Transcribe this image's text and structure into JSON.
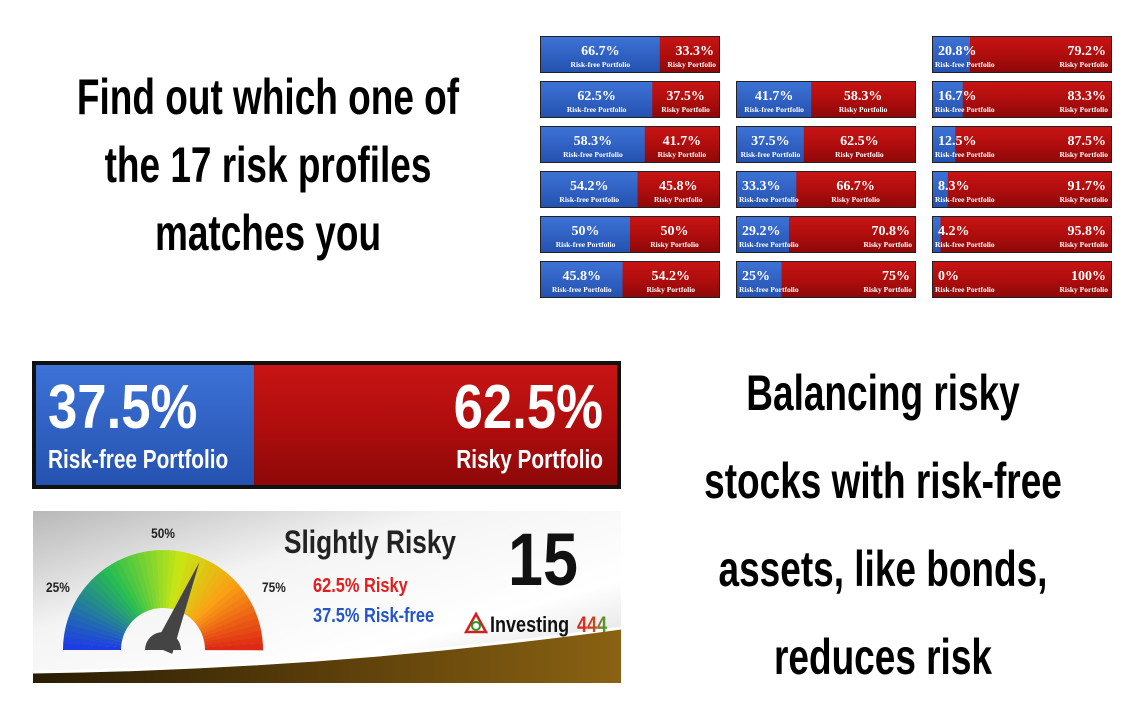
{
  "headline": [
    "Find out which one of",
    "the 17 risk profiles",
    "matches you"
  ],
  "profiles": [
    {
      "risk_free": "66.7%",
      "risky": "33.3%",
      "risk_free_label": "Risk-free Portfolio",
      "risky_label": "Risky Portfolio"
    },
    {
      "risk_free": "62.5%",
      "risky": "37.5%",
      "risk_free_label": "Risk-free Portfolio",
      "risky_label": "Risky Portfolio"
    },
    {
      "risk_free": "58.3%",
      "risky": "41.7%",
      "risk_free_label": "Risk-free Portfolio",
      "risky_label": "Risky Portfolio"
    },
    {
      "risk_free": "54.2%",
      "risky": "45.8%",
      "risk_free_label": "Risk-free Portfolio",
      "risky_label": "Risky Portfolio"
    },
    {
      "risk_free": "50%",
      "risky": "50%",
      "risk_free_label": "Risk-free Portfolio",
      "risky_label": "Risky Portfolio"
    },
    {
      "risk_free": "45.8%",
      "risky": "54.2%",
      "risk_free_label": "Risk-free Portfolio",
      "risky_label": "Risky Portfolio"
    },
    {
      "risk_free": "41.7%",
      "risky": "58.3%",
      "risk_free_label": "Risk-free Portfolio",
      "risky_label": "Risky Portfolio"
    },
    {
      "risk_free": "37.5%",
      "risky": "62.5%",
      "risk_free_label": "Risk-free Portfolio",
      "risky_label": "Risky Portfolio"
    },
    {
      "risk_free": "33.3%",
      "risky": "66.7%",
      "risk_free_label": "Risk-free Portfolio",
      "risky_label": "Risky Portfolio"
    },
    {
      "risk_free": "29.2%",
      "risky": "70.8%",
      "risk_free_label": "Risk-free Portfolio",
      "risky_label": "Risky Portfolio"
    },
    {
      "risk_free": "25%",
      "risky": "75%",
      "risk_free_label": "Risk-free Portfolio",
      "risky_label": "Risky Portfolio"
    },
    {
      "risk_free": "20.8%",
      "risky": "79.2%",
      "risk_free_label": "Risk-free Portfolio",
      "risky_label": "Risky Portfolio"
    },
    {
      "risk_free": "16.7%",
      "risky": "83.3%",
      "risk_free_label": "Risk-free Portfolio",
      "risky_label": "Risky Portfolio"
    },
    {
      "risk_free": "12.5%",
      "risky": "87.5%",
      "risk_free_label": "Risk-free Portfolio",
      "risky_label": "Risky Portfolio"
    },
    {
      "risk_free": "8.3%",
      "risky": "91.7%",
      "risk_free_label": "Risk-free Portfolio",
      "risky_label": "Risky Portfolio"
    },
    {
      "risk_free": "4.2%",
      "risky": "95.8%",
      "risk_free_label": "Risk-free Portfolio",
      "risky_label": "Risky Portfolio"
    },
    {
      "risk_free": "0%",
      "risky": "100%",
      "risk_free_label": "Risk-free Portfolio",
      "risky_label": "Risky Portfolio"
    }
  ],
  "selected": {
    "risk_free": "37.5%",
    "risky": "62.5%",
    "risk_free_label": "Risk-free Portfolio",
    "risky_label": "Risky Portfolio"
  },
  "gauge": {
    "ticks": [
      "25%",
      "50%",
      "75%"
    ],
    "level": "Slightly Risky",
    "number": "15",
    "risky_line": "62.5% Risky",
    "risk_free_line": "37.5% Risk-free",
    "brand": "Investing",
    "brand_number": "444"
  },
  "tagline": [
    "Balancing risky",
    "stocks with risk-free",
    "assets, like bonds,",
    "reduces risk"
  ]
}
